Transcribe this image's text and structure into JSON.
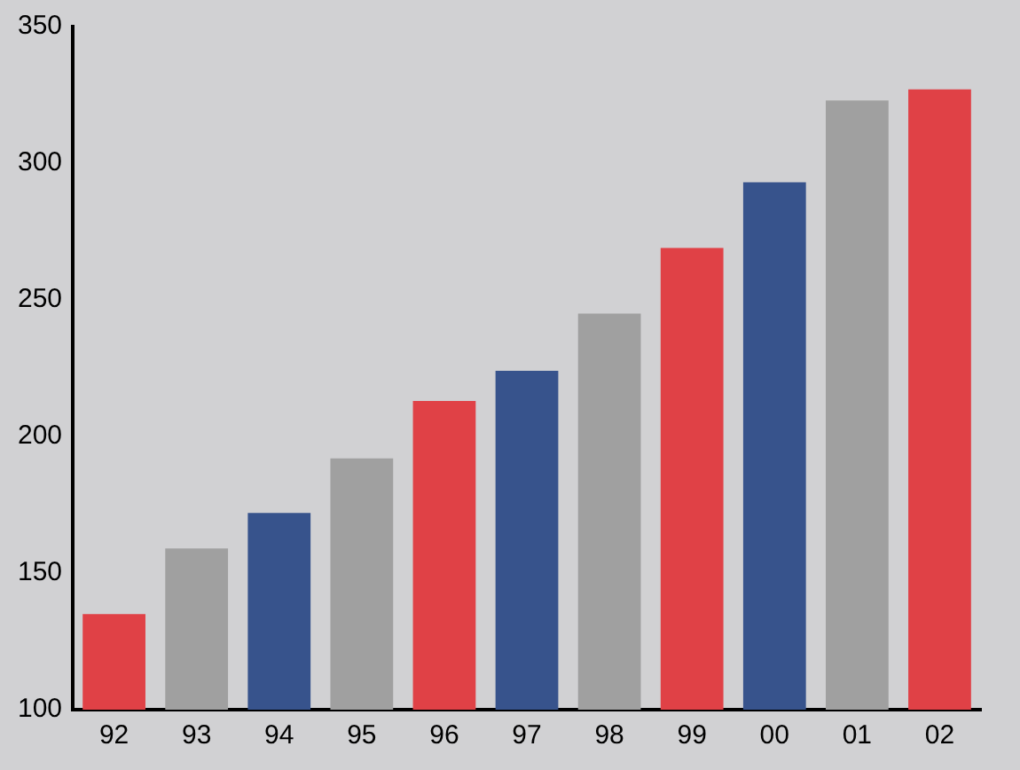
{
  "chart_data": {
    "type": "bar",
    "categories": [
      "92",
      "93",
      "94",
      "95",
      "96",
      "97",
      "98",
      "99",
      "00",
      "01",
      "02"
    ],
    "values": [
      135,
      159,
      172,
      192,
      213,
      224,
      245,
      269,
      293,
      323,
      327
    ],
    "colors": [
      "#e04146",
      "#a0a0a0",
      "#37538c",
      "#a0a0a0",
      "#e04146",
      "#37538c",
      "#a0a0a0",
      "#e04146",
      "#37538c",
      "#a0a0a0",
      "#e04146"
    ],
    "ylim": [
      100,
      350
    ],
    "yticks": [
      100,
      150,
      200,
      250,
      300,
      350
    ],
    "grid": false,
    "legend": false
  }
}
